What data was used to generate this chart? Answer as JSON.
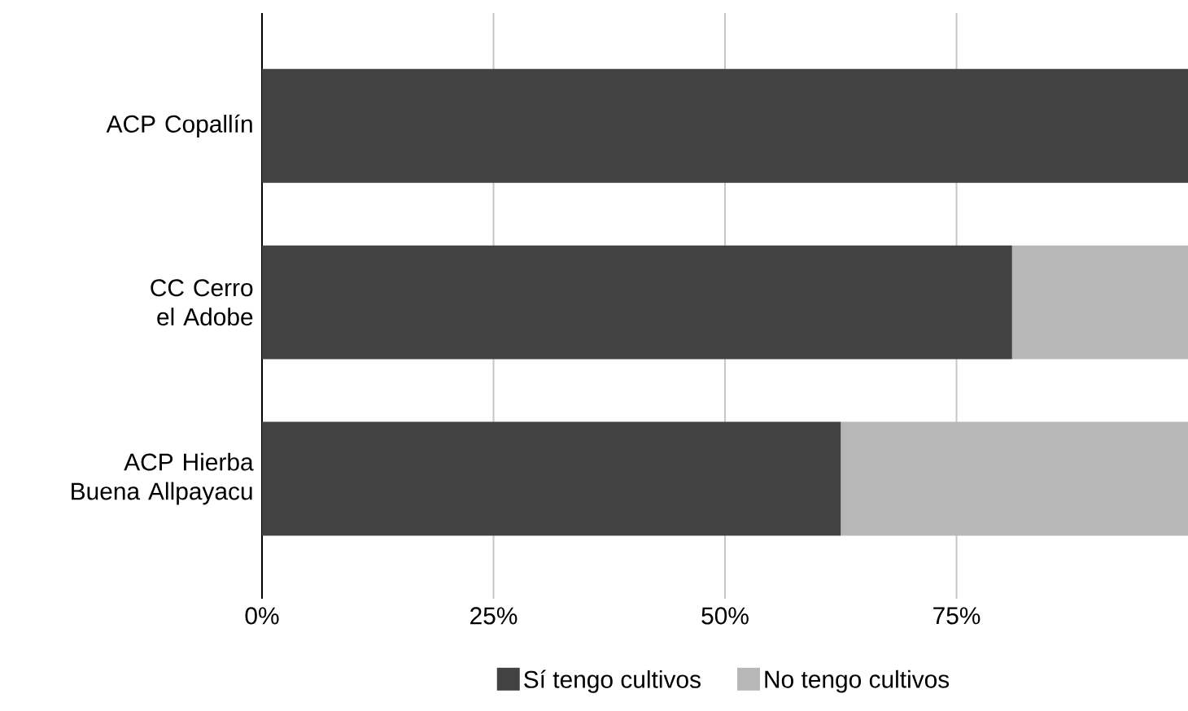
{
  "chart_data": {
    "type": "bar",
    "orientation": "horizontal",
    "stacked": true,
    "categories": [
      "ACP Copallín",
      "CC Cerro el Adobe",
      "ACP Hierba Buena Allpayacu"
    ],
    "series": [
      {
        "name": "Sí tengo cultivos",
        "color": "#424242",
        "values": [
          100,
          81,
          62.5
        ]
      },
      {
        "name": "No tengo cultivos",
        "color": "#b7b7b7",
        "values": [
          0,
          19,
          37.5
        ]
      }
    ],
    "xlim": [
      0,
      100
    ],
    "xticks": [
      {
        "value": 0,
        "label": "0%"
      },
      {
        "value": 25,
        "label": "25%"
      },
      {
        "value": 50,
        "label": "50%"
      },
      {
        "value": 75,
        "label": "75%"
      }
    ],
    "grid": "x",
    "legend": "bottom"
  }
}
